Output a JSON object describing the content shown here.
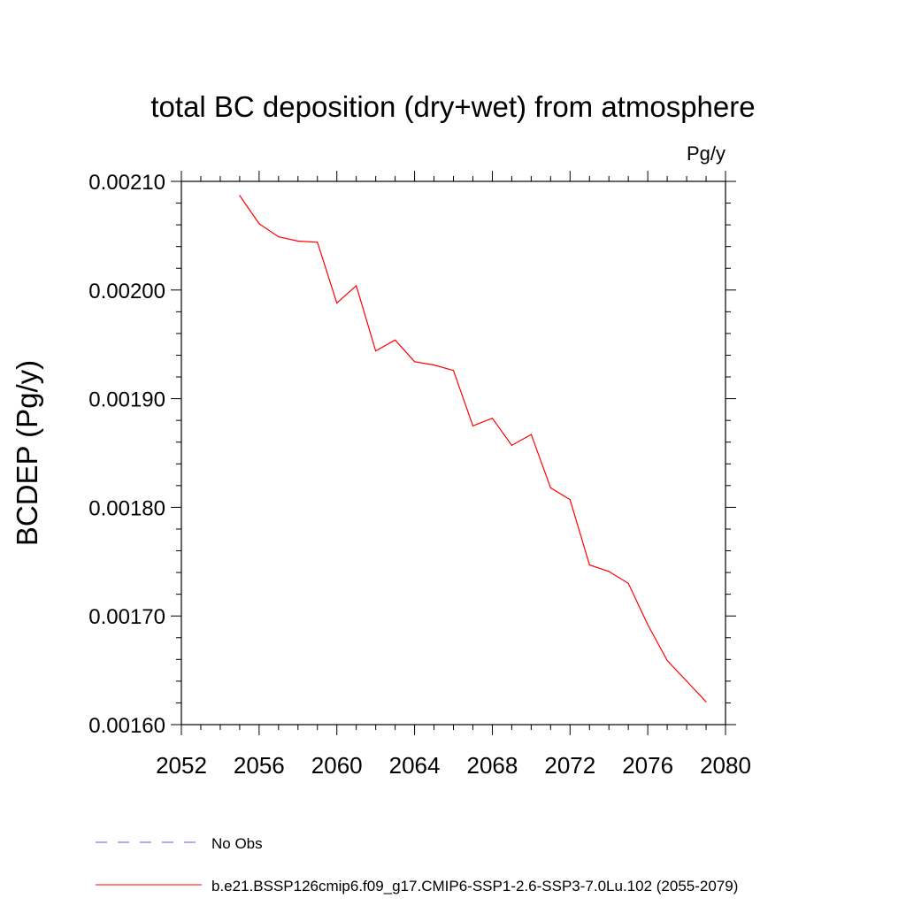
{
  "chart_data": {
    "type": "line",
    "title": "total BC deposition (dry+wet) from atmosphere",
    "units_label": "Pg/y",
    "ylabel": "BCDEP  (Pg/y)",
    "xlabel": "",
    "xlim": [
      2052,
      2080
    ],
    "ylim": [
      0.0016,
      0.0021
    ],
    "xticks": [
      2052,
      2056,
      2060,
      2064,
      2068,
      2072,
      2076,
      2080
    ],
    "yticks": [
      0.0016,
      0.0017,
      0.0018,
      0.0019,
      0.002,
      0.0021
    ],
    "ytick_labels": [
      "0.00160",
      "0.00170",
      "0.00180",
      "0.00190",
      "0.00200",
      "0.00210"
    ],
    "grid": false,
    "legend_position": "bottom",
    "series": [
      {
        "name": "No Obs",
        "color": "#6a5acd",
        "dash": "dashed",
        "x": [],
        "values": []
      },
      {
        "name": "b.e21.BSSP126cmip6.f09_g17.CMIP6-SSP1-2.6-SSP3-7.0Lu.102 (2055-2079)",
        "color": "#ff0000",
        "dash": "solid",
        "x": [
          2055,
          2056,
          2057,
          2058,
          2059,
          2060,
          2061,
          2062,
          2063,
          2064,
          2065,
          2066,
          2067,
          2068,
          2069,
          2070,
          2071,
          2072,
          2073,
          2074,
          2075,
          2076,
          2077,
          2078,
          2079
        ],
        "values": [
          0.002087,
          0.002061,
          0.002049,
          0.002045,
          0.002044,
          0.001988,
          0.002004,
          0.001944,
          0.001954,
          0.001934,
          0.001931,
          0.001926,
          0.001875,
          0.001882,
          0.001857,
          0.001867,
          0.001818,
          0.001807,
          0.001747,
          0.001741,
          0.00173,
          0.001692,
          0.001659,
          0.00164,
          0.001621
        ]
      }
    ]
  }
}
